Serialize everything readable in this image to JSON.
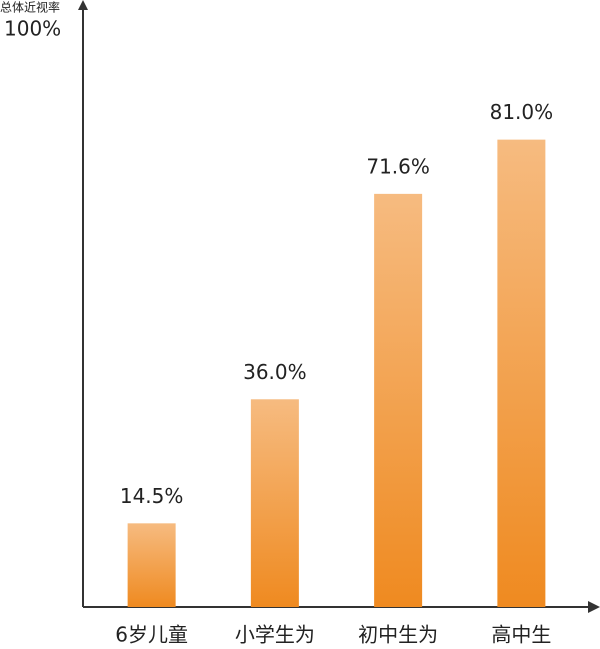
{
  "chart_data": {
    "type": "bar",
    "y_axis_label": "总体近视率",
    "categories": [
      "6岁儿童",
      "小学生为",
      "初中生为",
      "高中生"
    ],
    "values": [
      14.5,
      36.0,
      71.6,
      81.0
    ],
    "value_labels": [
      "14.5%",
      "36.0%",
      "71.6%",
      "81.0%"
    ],
    "gradient": [
      "#f6bb80",
      "#ef8a20"
    ],
    "ylim": [
      0,
      100
    ],
    "yticks": [
      {
        "value": 100,
        "label": "100%"
      }
    ]
  }
}
